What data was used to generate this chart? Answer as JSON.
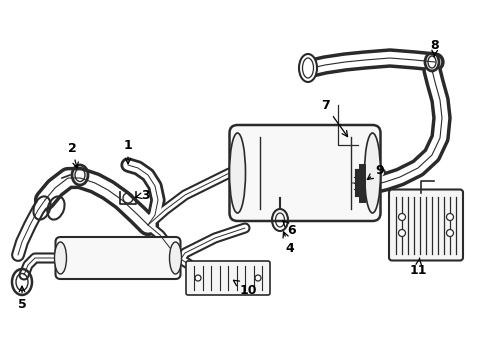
{
  "bg_color": "#ffffff",
  "line_color": "#2a2a2a",
  "label_color": "#000000",
  "figsize": [
    4.9,
    3.6
  ],
  "dpi": 100,
  "xlim": [
    0,
    490
  ],
  "ylim": [
    0,
    360
  ]
}
